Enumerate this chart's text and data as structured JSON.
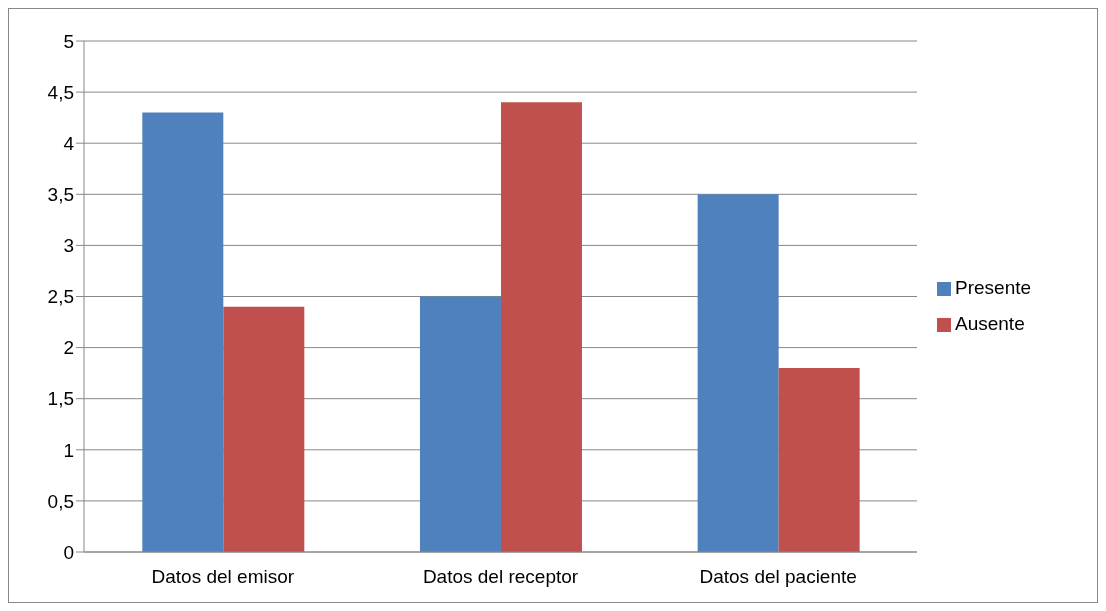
{
  "chart_data": {
    "type": "bar",
    "categories": [
      "Datos del emisor",
      "Datos del receptor",
      "Datos del paciente"
    ],
    "series": [
      {
        "name": "Presente",
        "color": "#4f81bd",
        "values": [
          4.3,
          2.5,
          3.5
        ]
      },
      {
        "name": "Ausente",
        "color": "#c0504d",
        "values": [
          2.4,
          4.4,
          1.8
        ]
      }
    ],
    "ylim": [
      0,
      5
    ],
    "yticks": [
      0,
      {
        "value": 0.5,
        "label": "0,5"
      },
      1,
      {
        "value": 1.5,
        "label": "1,5"
      },
      2,
      {
        "value": 2.5,
        "label": "2,5"
      },
      3,
      {
        "value": 3.5,
        "label": "3,5"
      },
      4,
      {
        "value": 4.5,
        "label": "4,5"
      },
      5
    ],
    "grid": "y",
    "legend": "right"
  }
}
